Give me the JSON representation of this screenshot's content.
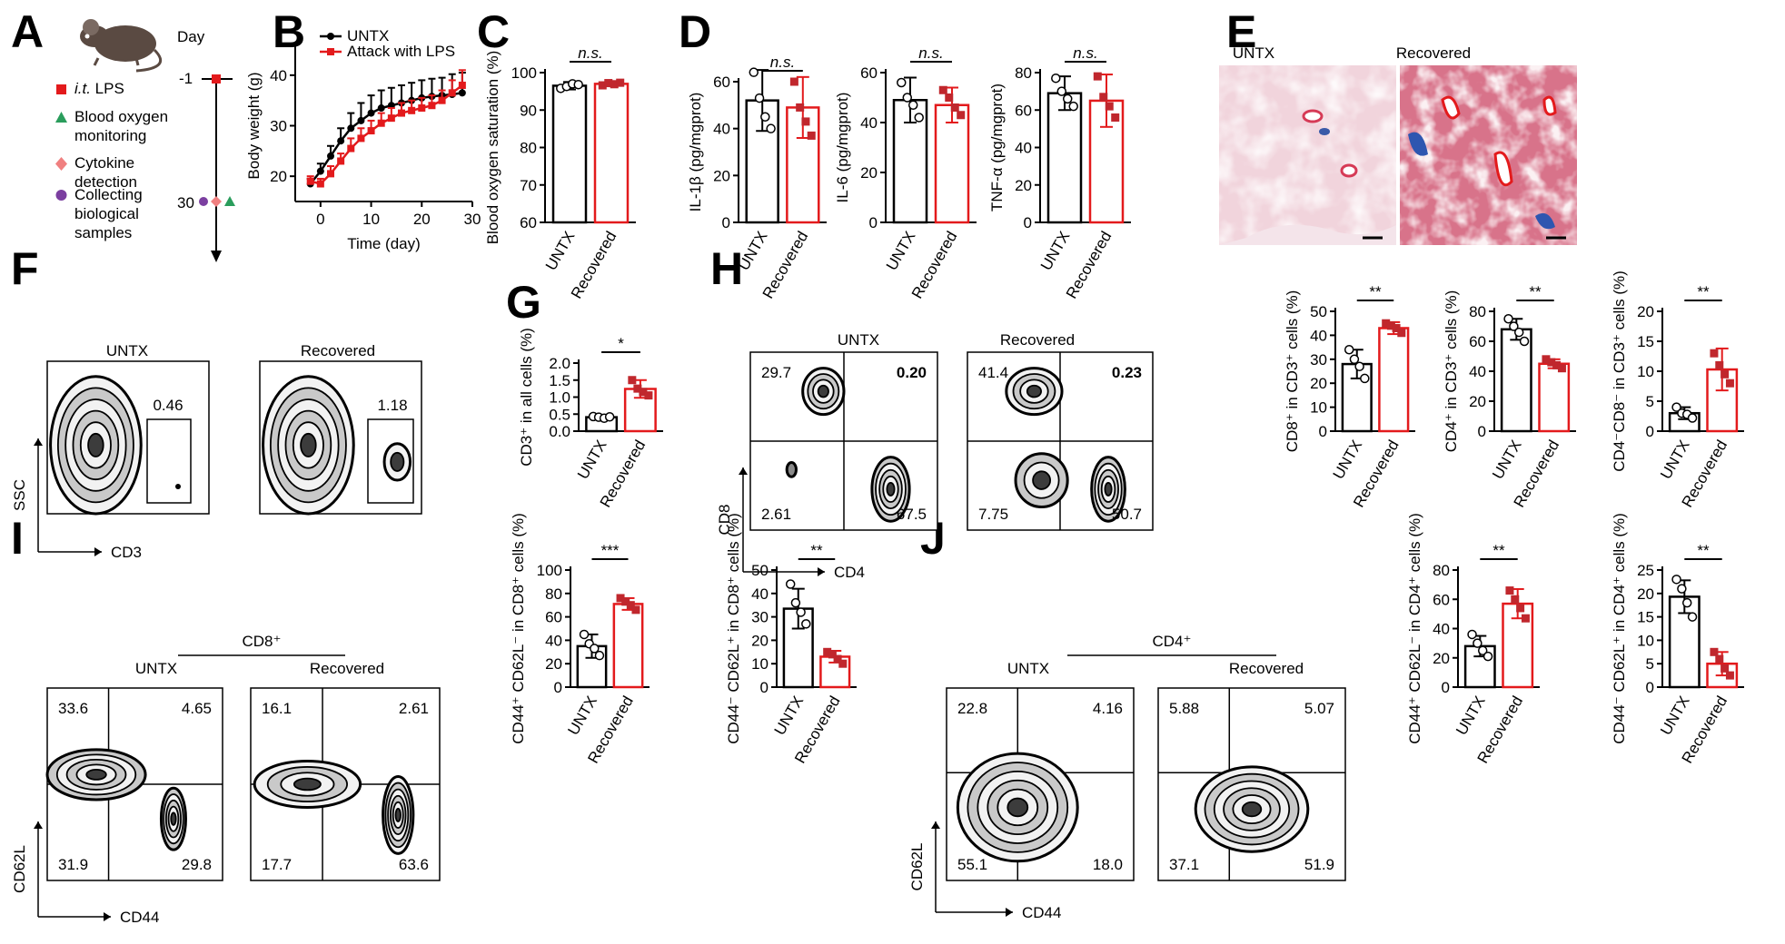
{
  "panel_letters": [
    "A",
    "B",
    "C",
    "D",
    "E",
    "F",
    "G",
    "H",
    "I",
    "J"
  ],
  "timeline": {
    "day_label": "Day",
    "day_top": "-1",
    "day_bottom": "30",
    "legend": [
      {
        "marker": "square",
        "color": "#e31a1c",
        "text": "i.t. LPS",
        "italic_part": "i.t."
      },
      {
        "marker": "triangle",
        "color": "#2a9d5c",
        "text": "Blood oxygen monitoring"
      },
      {
        "marker": "diamond",
        "color": "#f08080",
        "text": "Cytokine detection"
      },
      {
        "marker": "circle",
        "color": "#7b3fa0",
        "text": "Collecting biological samples"
      }
    ]
  },
  "colors": {
    "untx": "#000000",
    "recovered": "#e31a1c",
    "dot_untx": "#ffffff",
    "dot_rec": "#c0272d"
  },
  "group_labels": [
    "UNTX",
    "Recovered"
  ],
  "histology": {
    "left_title": "UNTX",
    "right_title": "Recovered"
  },
  "flow": {
    "F": {
      "left_title": "UNTX",
      "right_title": "Recovered",
      "xlabel": "CD3",
      "ylabel": "SSC",
      "left_value": "0.46",
      "right_value": "1.18"
    },
    "H": {
      "left_title": "UNTX",
      "right_title": "Recovered",
      "xlabel": "CD4",
      "ylabel": "CD8",
      "left_q": {
        "tl": "29.7",
        "tr": "0.20",
        "bl": "2.61",
        "br": "67.5"
      },
      "right_q": {
        "tl": "41.4",
        "tr": "0.23",
        "bl": "7.75",
        "br": "50.7"
      }
    },
    "I": {
      "header": "CD8⁺",
      "left_title": "UNTX",
      "right_title": "Recovered",
      "xlabel": "CD44",
      "ylabel": "CD62L",
      "left_q": {
        "tl": "33.6",
        "tr": "4.65",
        "bl": "31.9",
        "br": "29.8"
      },
      "right_q": {
        "tl": "16.1",
        "tr": "2.61",
        "bl": "17.7",
        "br": "63.6"
      }
    },
    "J": {
      "header": "CD4⁺",
      "left_title": "UNTX",
      "right_title": "Recovered",
      "xlabel": "CD44",
      "ylabel": "CD62L",
      "left_q": {
        "tl": "22.8",
        "tr": "4.16",
        "bl": "55.1",
        "br": "18.0"
      },
      "right_q": {
        "tl": "5.88",
        "tr": "5.07",
        "bl": "37.1",
        "br": "51.9"
      }
    }
  },
  "chart_data": [
    {
      "id": "B",
      "type": "line",
      "xlabel": "Time (day)",
      "ylabel": "Body weight (g)",
      "xlim": [
        -5,
        30
      ],
      "ylim": [
        15,
        45
      ],
      "xticks": [
        0,
        10,
        20,
        30
      ],
      "yticks": [
        20,
        30,
        40
      ],
      "x": [
        -2,
        0,
        2,
        4,
        6,
        8,
        10,
        12,
        14,
        16,
        18,
        20,
        22,
        24,
        26,
        28
      ],
      "series": [
        {
          "name": "UNTX",
          "color": "#000000",
          "marker": "circle",
          "values": [
            18.5,
            21,
            24,
            27,
            29.5,
            31,
            32.5,
            33.5,
            34,
            34.5,
            35,
            35.5,
            35.8,
            36,
            36.2,
            36.5
          ],
          "errors": [
            1,
            1.5,
            2,
            2.5,
            3,
            3.5,
            3.5,
            3.5,
            3.5,
            3.5,
            3.5,
            3.5,
            3.5,
            3.5,
            4,
            4
          ]
        },
        {
          "name": "Attack with LPS",
          "color": "#e31a1c",
          "marker": "square",
          "values": [
            19,
            18.5,
            20.5,
            23,
            25.5,
            27.5,
            29,
            30.5,
            31.5,
            32.5,
            33,
            33.5,
            34,
            35,
            36.5,
            38
          ],
          "errors": [
            1,
            1,
            1.5,
            1.5,
            2,
            2,
            2,
            2,
            2,
            2,
            2,
            2,
            2,
            2,
            2.5,
            3
          ]
        }
      ]
    },
    {
      "id": "C",
      "type": "bar",
      "categories": [
        "UNTX",
        "Recovered"
      ],
      "ylabel": "Blood oxygen saturation (%)",
      "ylim": [
        60,
        100
      ],
      "yticks": [
        60,
        70,
        80,
        90,
        100
      ],
      "values": [
        96.5,
        97
      ],
      "errors": [
        1,
        0.6
      ],
      "significance": "n.s.",
      "points": [
        [
          95.8,
          96.3,
          97,
          96.8
        ],
        [
          96.6,
          97.2,
          96.9,
          97.3
        ]
      ]
    },
    {
      "id": "D1",
      "type": "bar",
      "categories": [
        "UNTX",
        "Recovered"
      ],
      "ylabel": "IL-1β (pg/mgprot)",
      "ylim": [
        0,
        60
      ],
      "yticks": [
        0,
        20,
        40,
        60
      ],
      "values": [
        52,
        49
      ],
      "errors": [
        13,
        13
      ],
      "significance": "n.s.",
      "points": [
        [
          64,
          53,
          45,
          40
        ],
        [
          60,
          49,
          43,
          37
        ]
      ]
    },
    {
      "id": "D2",
      "type": "bar",
      "categories": [
        "UNTX",
        "Recovered"
      ],
      "ylabel": "IL-6 (pg/mgprot)",
      "ylim": [
        0,
        60
      ],
      "yticks": [
        0,
        20,
        40,
        60
      ],
      "values": [
        49,
        47
      ],
      "errors": [
        9,
        7
      ],
      "significance": "n.s.",
      "points": [
        [
          56,
          50,
          47,
          42
        ],
        [
          53,
          50,
          46,
          43
        ]
      ]
    },
    {
      "id": "D3",
      "type": "bar",
      "categories": [
        "UNTX",
        "Recovered"
      ],
      "ylabel": "TNF-α (pg/mgprot)",
      "ylim": [
        0,
        80
      ],
      "yticks": [
        0,
        20,
        40,
        60,
        80
      ],
      "values": [
        69,
        65
      ],
      "errors": [
        9,
        14
      ],
      "significance": "n.s.",
      "points": [
        [
          77,
          70,
          66,
          62
        ],
        [
          78,
          67,
          62,
          56
        ]
      ]
    },
    {
      "id": "G",
      "type": "bar",
      "categories": [
        "UNTX",
        "Recovered"
      ],
      "ylabel": "CD3⁺ in all cells (%)",
      "ylim": [
        0,
        2.0
      ],
      "yticks": [
        0.0,
        0.5,
        1.0,
        1.5,
        2.0
      ],
      "values": [
        0.41,
        1.24
      ],
      "errors": [
        0.04,
        0.26
      ],
      "significance": "*",
      "points": [
        [
          0.43,
          0.41,
          0.38,
          0.42
        ],
        [
          1.5,
          1.25,
          1.15,
          1.05
        ]
      ]
    },
    {
      "id": "H1",
      "type": "bar",
      "categories": [
        "UNTX",
        "Recovered"
      ],
      "ylabel": "CD8⁺ in CD3⁺ cells (%)",
      "ylim": [
        0,
        50
      ],
      "yticks": [
        0,
        10,
        20,
        30,
        40,
        50
      ],
      "values": [
        28,
        43
      ],
      "errors": [
        6,
        2.5
      ],
      "significance": "**",
      "points": [
        [
          34,
          30,
          27,
          22
        ],
        [
          45,
          44,
          43,
          41
        ]
      ]
    },
    {
      "id": "H2",
      "type": "bar",
      "categories": [
        "UNTX",
        "Recovered"
      ],
      "ylabel": "CD4⁺ in CD3⁺ cells (%)",
      "ylim": [
        0,
        80
      ],
      "yticks": [
        0,
        20,
        40,
        60,
        80
      ],
      "values": [
        68,
        45
      ],
      "errors": [
        7,
        3
      ],
      "significance": "**",
      "points": [
        [
          75,
          70,
          66,
          60
        ],
        [
          48,
          46,
          44,
          42
        ]
      ]
    },
    {
      "id": "H3",
      "type": "bar",
      "categories": [
        "UNTX",
        "Recovered"
      ],
      "ylabel": "CD4⁻CD8⁻ in CD3⁺ cells (%)",
      "ylim": [
        0,
        20
      ],
      "yticks": [
        0,
        5,
        10,
        15,
        20
      ],
      "values": [
        3,
        10.3
      ],
      "errors": [
        1,
        3.5
      ],
      "significance": "**",
      "points": [
        [
          4,
          3,
          2.8,
          2.2
        ],
        [
          13,
          11,
          9.5,
          8
        ]
      ]
    },
    {
      "id": "I1",
      "type": "bar",
      "categories": [
        "UNTX",
        "Recovered"
      ],
      "ylabel": "CD44⁺ CD62L⁻ in CD8⁺ cells (%)",
      "ylim": [
        0,
        100
      ],
      "yticks": [
        0,
        20,
        40,
        60,
        80,
        100
      ],
      "values": [
        35,
        71
      ],
      "errors": [
        10,
        5
      ],
      "significance": "***",
      "points": [
        [
          45,
          37,
          33,
          27
        ],
        [
          76,
          73,
          70,
          66
        ]
      ]
    },
    {
      "id": "I2",
      "type": "bar",
      "categories": [
        "UNTX",
        "Recovered"
      ],
      "ylabel": "CD44⁻ CD62L⁺ in CD8⁺ cells (%)",
      "ylim": [
        0,
        50
      ],
      "yticks": [
        0,
        10,
        20,
        30,
        40,
        50
      ],
      "values": [
        33.5,
        13
      ],
      "errors": [
        8.5,
        2.5
      ],
      "significance": "**",
      "points": [
        [
          44,
          36,
          32,
          27
        ],
        [
          15,
          14,
          12,
          10
        ]
      ]
    },
    {
      "id": "J1",
      "type": "bar",
      "categories": [
        "UNTX",
        "Recovered"
      ],
      "ylabel": "CD44⁺ CD62L⁻ in CD4⁺ cells (%)",
      "ylim": [
        0,
        80
      ],
      "yticks": [
        0,
        20,
        40,
        60,
        80
      ],
      "values": [
        28,
        57
      ],
      "errors": [
        7,
        10
      ],
      "significance": "**",
      "points": [
        [
          36,
          30,
          25,
          21
        ],
        [
          66,
          60,
          54,
          47
        ]
      ]
    },
    {
      "id": "J2",
      "type": "bar",
      "categories": [
        "UNTX",
        "Recovered"
      ],
      "ylabel": "CD44⁻ CD62L⁺ in CD4⁺ cells (%)",
      "ylim": [
        0,
        25
      ],
      "yticks": [
        0,
        5,
        10,
        15,
        20,
        25
      ],
      "values": [
        19.3,
        5
      ],
      "errors": [
        3.5,
        2.5
      ],
      "significance": "**",
      "points": [
        [
          23,
          21,
          18,
          15
        ],
        [
          7.5,
          6,
          4,
          2.5
        ]
      ]
    }
  ]
}
